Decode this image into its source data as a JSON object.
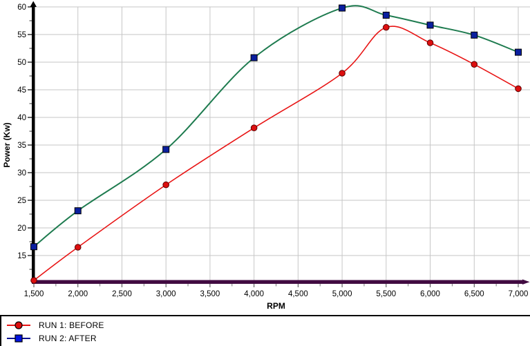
{
  "chart_data": {
    "type": "line",
    "title": "",
    "xlabel": "RPM",
    "ylabel": "Power (Kw)",
    "grid": true,
    "legend_position": "bottom-left",
    "x_axis": {
      "label": "RPM",
      "min": 1500,
      "max": 7000,
      "tick_values": [
        1500,
        2000,
        2500,
        3000,
        3500,
        4000,
        4500,
        5000,
        5500,
        6000,
        6500,
        7000
      ],
      "tick_labels": [
        "1,500",
        "2,000",
        "2,500",
        "3,000",
        "3,500",
        "4,000",
        "4,500",
        "5,000",
        "5,500",
        "6,000",
        "6,500",
        "7,000"
      ],
      "minor_tick_step": 250
    },
    "y_axis": {
      "label": "Power (Kw)",
      "min": 10,
      "max": 60,
      "tick_values": [
        60,
        55,
        50,
        45,
        40,
        35,
        30,
        25,
        20,
        15
      ],
      "tick_labels": [
        "60",
        "55",
        "50",
        "45",
        "40",
        "35",
        "30",
        "25",
        "20",
        "15"
      ],
      "minor_tick_step": 2.5
    },
    "x": [
      1500,
      2000,
      3000,
      4000,
      5000,
      5500,
      6000,
      6500,
      7000
    ],
    "series": [
      {
        "name": "RUN 1: BEFORE",
        "marker": "circle",
        "line_color": "#e81414",
        "marker_fill": "#dd0f0f",
        "marker_stroke": "#5a0000",
        "values": [
          10.5,
          16.5,
          27.8,
          38.1,
          48.0,
          56.3,
          53.5,
          49.6,
          45.2
        ]
      },
      {
        "name": "RUN 2: AFTER",
        "marker": "square",
        "line_color": "#1e7b4f",
        "marker_fill": "#0a1f9e",
        "marker_stroke": "#000000",
        "legend_line_color": "#001090",
        "legend_marker_fill": "#0013e0",
        "values": [
          16.6,
          23.1,
          34.2,
          50.8,
          59.8,
          58.5,
          56.7,
          54.9,
          51.8
        ]
      }
    ],
    "colors": {
      "grid": "#c6c6c6",
      "x_axis_line": "#410b41",
      "y_axis_line": "#000000",
      "tick_text": "#000000"
    }
  }
}
